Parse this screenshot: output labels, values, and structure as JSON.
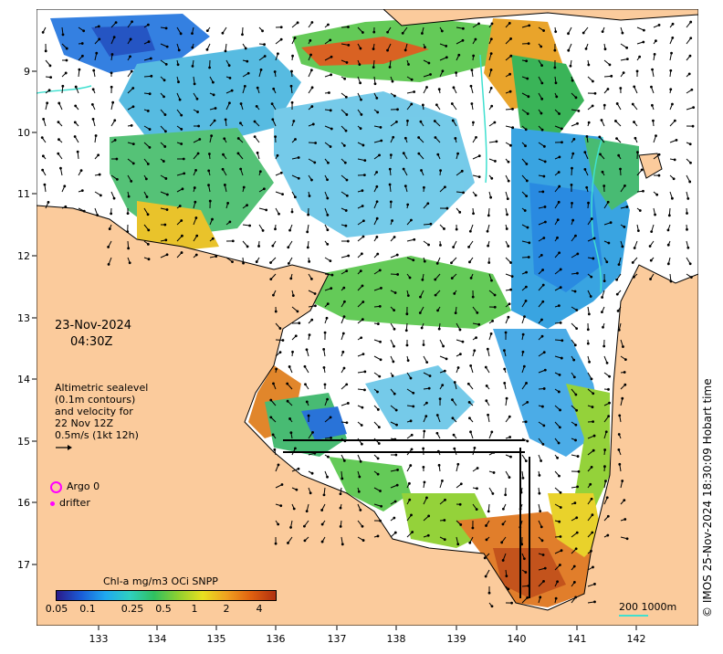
{
  "map": {
    "lon_ticks": [
      "133",
      "134",
      "135",
      "136",
      "137",
      "138",
      "139",
      "140",
      "141",
      "142"
    ],
    "lat_ticks": [
      "9",
      "10",
      "11",
      "12",
      "13",
      "14",
      "15",
      "16",
      "17"
    ],
    "lon_range": [
      132.0,
      143.0
    ],
    "lat_range": [
      -8.2,
      -17.7
    ],
    "colors": {
      "land": "#fbcb9c",
      "coast_band": "#ffffff",
      "contour": "#40e0d0",
      "vector": "#000000",
      "marker": "#ff00ff"
    }
  },
  "annotations": {
    "date": "23-Nov-2024",
    "time": "04:30Z",
    "altimetry_lines": [
      "Altimetric sealevel",
      "(0.1m contours)",
      "and velocity for",
      "22 Nov 12Z",
      "0.5m/s (1kt 12h)"
    ],
    "argo_label": "Argo 0",
    "drifter_label": "drifter"
  },
  "colorbar": {
    "title": "Chl-a mg/m3 OCi SNPP",
    "labels": [
      "0.05",
      "0.1",
      "0.25",
      "0.5",
      "1",
      "2",
      "4"
    ],
    "colors": [
      "#2a1a8a",
      "#1a5cd6",
      "#1fa8f0",
      "#2fd0c0",
      "#30c060",
      "#8fd030",
      "#e8e020",
      "#f0a020",
      "#e06010",
      "#b03010"
    ]
  },
  "scale": {
    "label": "200  1000m"
  },
  "copyright": "© IMOS 25-Nov-2024 18:30:09 Hobart time"
}
